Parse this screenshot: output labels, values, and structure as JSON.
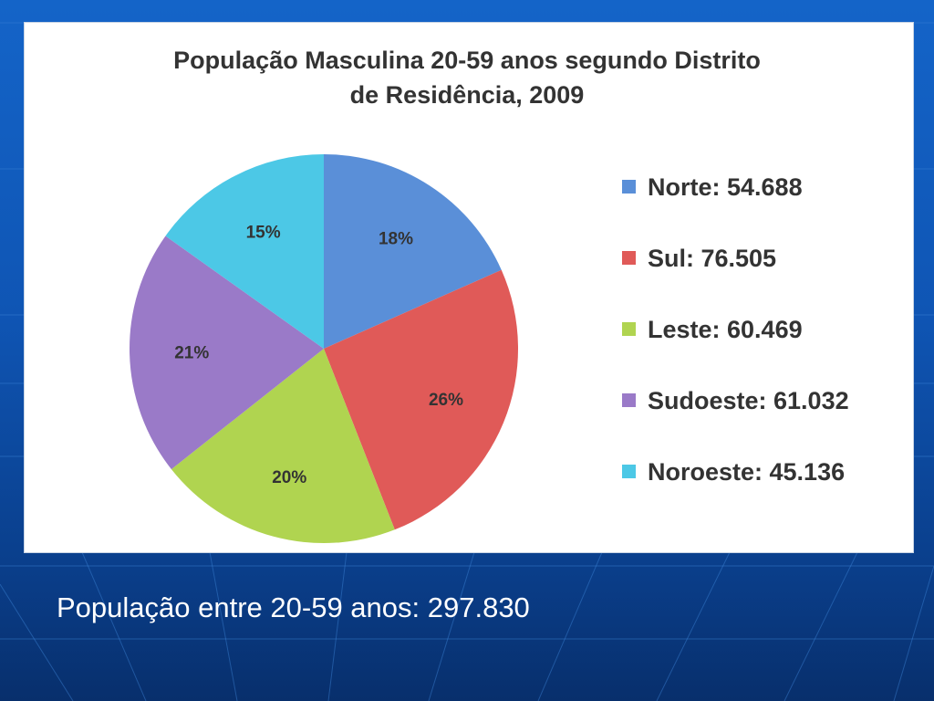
{
  "chart_data": {
    "type": "pie",
    "title_lines": [
      "População Masculina 20-59 anos segundo Distrito",
      "de Residência, 2009"
    ],
    "series": [
      {
        "name": "Norte",
        "value": 54688,
        "value_label": "54.688",
        "percent_label": "18%",
        "color": "#5a8fd8"
      },
      {
        "name": "Sul",
        "value": 76505,
        "value_label": "76.505",
        "percent_label": "26%",
        "color": "#e05a58"
      },
      {
        "name": "Leste",
        "value": 60469,
        "value_label": "60.469",
        "percent_label": "20%",
        "color": "#b0d450"
      },
      {
        "name": "Sudoeste",
        "value": 61032,
        "value_label": "61.032",
        "percent_label": "21%",
        "color": "#9a7ac8"
      },
      {
        "name": "Noroeste",
        "value": 45136,
        "value_label": "45.136",
        "percent_label": "15%",
        "color": "#4cc8e6"
      }
    ],
    "legend_position": "right",
    "start": "12 o'clock",
    "direction": "clockwise"
  },
  "footer": {
    "text": "População entre 20-59 anos: 297.830"
  }
}
